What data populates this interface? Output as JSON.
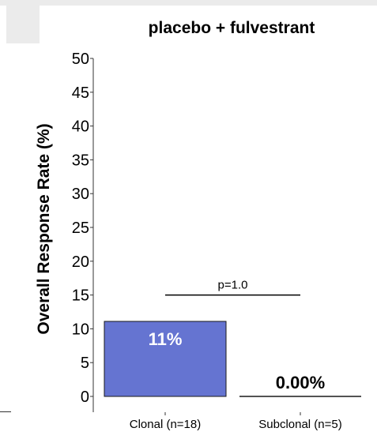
{
  "chart_data": {
    "type": "bar",
    "title": "placebo + fulvestrant",
    "xlabel": "",
    "ylabel": "Overall Response Rate (%)",
    "ylim": [
      0,
      50
    ],
    "yticks": [
      "0",
      "5",
      "10",
      "15",
      "20",
      "25",
      "30",
      "35",
      "40",
      "45",
      "50"
    ],
    "categories": [
      "Clonal (n=18)",
      "Subclonal (n=5)"
    ],
    "values": [
      11.1,
      0
    ],
    "data_labels": [
      "11%",
      "0.00%"
    ],
    "annotation": {
      "text": "p=1.0",
      "y": 15
    },
    "grid": false,
    "colors": {
      "bar_fill": "#6574d1",
      "bar_edge": "#1a1a1a",
      "text": "#000000",
      "label_on_bar": "#ffffff"
    }
  }
}
